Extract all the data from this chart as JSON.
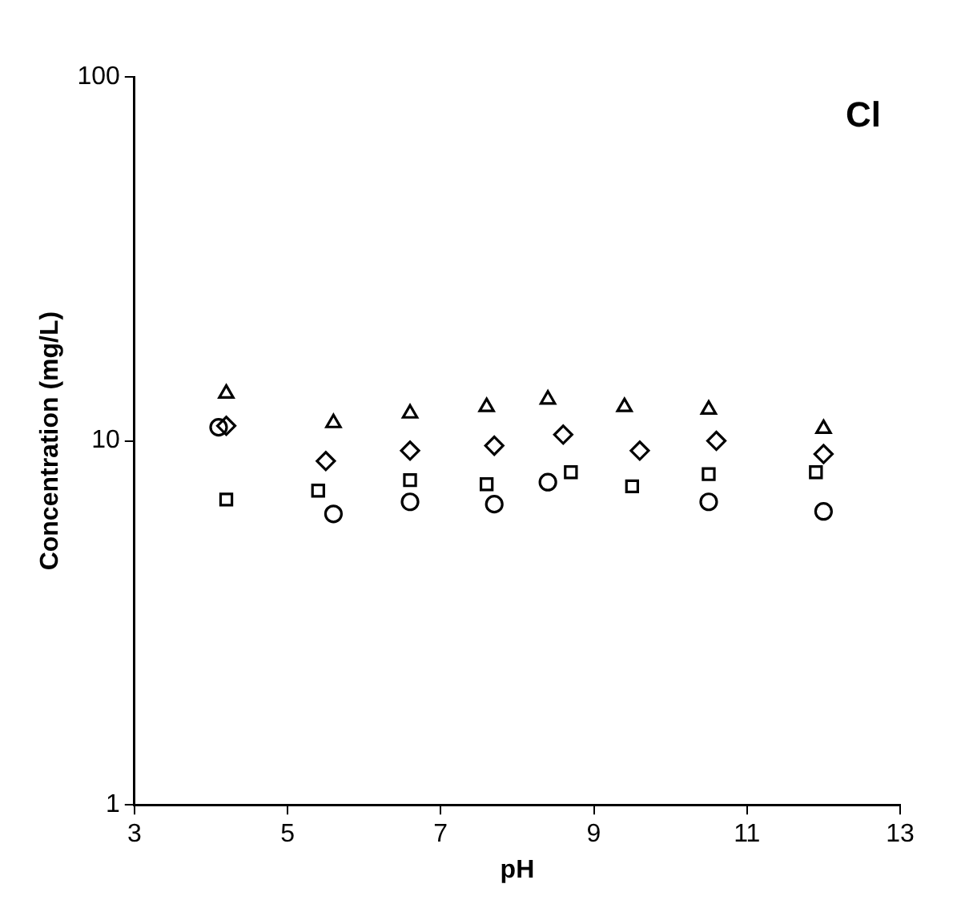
{
  "chart_data": {
    "type": "scatter",
    "xlabel": "pH",
    "ylabel": "Concentration (mg/L)",
    "annotations": [
      "Cl"
    ],
    "log": "y",
    "grid": false,
    "legend": false,
    "xlim": [
      3,
      13
    ],
    "xticks": [
      3,
      5,
      7,
      9,
      11,
      13
    ],
    "ylim": [
      1,
      100
    ],
    "yticks": [
      1,
      10,
      100
    ],
    "series": [
      {
        "marker": "triangle",
        "color": "#000000",
        "x": [
          4.2,
          5.6,
          6.6,
          7.6,
          8.4,
          9.4,
          10.5,
          12.0
        ],
        "values": [
          13.5,
          11.2,
          11.9,
          12.4,
          13.0,
          12.4,
          12.2,
          10.8
        ]
      },
      {
        "marker": "diamond",
        "color": "#000000",
        "x": [
          4.2,
          5.5,
          6.6,
          7.7,
          8.6,
          9.6,
          10.6,
          12.0
        ],
        "values": [
          11.0,
          8.8,
          9.4,
          9.7,
          10.4,
          9.4,
          10.0,
          9.2
        ]
      },
      {
        "marker": "square",
        "color": "#000000",
        "x": [
          4.2,
          5.4,
          6.6,
          7.6,
          8.7,
          9.5,
          10.5,
          11.9
        ],
        "values": [
          6.9,
          7.3,
          7.8,
          7.6,
          8.2,
          7.5,
          8.1,
          8.2
        ]
      },
      {
        "marker": "circle",
        "color": "#000000",
        "x": [
          4.1,
          5.6,
          6.6,
          7.7,
          8.4,
          10.5,
          12.0
        ],
        "values": [
          10.9,
          6.3,
          6.8,
          6.7,
          7.7,
          6.8,
          6.4
        ]
      }
    ]
  }
}
